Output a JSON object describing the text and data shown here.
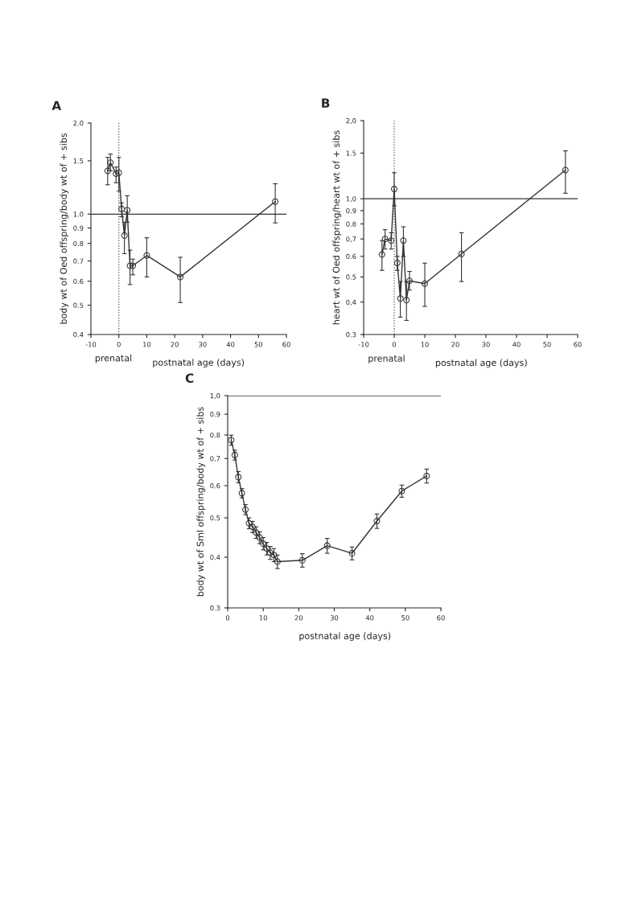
{
  "chart_data": [
    {
      "type": "line",
      "title": "A",
      "xlabel": "postnatal age (days)",
      "ylabel": "body wt of Oed offspring/body wt of + sibs",
      "annotations": [
        "prenatal"
      ],
      "log": "y",
      "grid": false,
      "marker": "circle",
      "line_style": "solid",
      "xlim": [
        -10,
        60
      ],
      "xticks": [
        -10,
        0,
        10,
        20,
        30,
        40,
        50,
        60
      ],
      "ylim": [
        0.4,
        2.0
      ],
      "yticks": [
        {
          "value": 0.4,
          "label": "0.4"
        },
        {
          "value": 0.5,
          "label": "0.5"
        },
        {
          "value": 0.6,
          "label": "0.6"
        },
        {
          "value": 0.7,
          "label": "0.7"
        },
        {
          "value": 0.8,
          "label": "0.8"
        },
        {
          "value": 0.9,
          "label": "0.9"
        },
        {
          "value": 1.0,
          "label": "1.0"
        },
        {
          "value": 1.5,
          "label": "1.5"
        },
        {
          "value": 2.0,
          "label": "2.0"
        }
      ],
      "ref_lines": [
        {
          "axis": "y",
          "value": 1.0,
          "color": "#333333",
          "line_style": "solid"
        },
        {
          "axis": "x",
          "value": 0,
          "color": "#555555",
          "line_style": "dotted"
        }
      ],
      "x": [
        -4,
        -3,
        -1,
        0,
        1,
        2,
        3,
        4,
        5,
        10,
        22,
        56
      ],
      "series": [
        {
          "color": "#333333",
          "values": [
            1.39,
            1.48,
            1.36,
            1.37,
            1.04,
            0.85,
            1.03,
            0.675,
            0.675,
            0.73,
            0.62,
            1.1
          ],
          "errors": [
            [
              1.25,
              1.54
            ],
            [
              1.39,
              1.58
            ],
            [
              1.27,
              1.43
            ],
            [
              1.19,
              1.54
            ],
            [
              0.98,
              1.09
            ],
            [
              0.74,
              0.94
            ],
            [
              0.94,
              1.15
            ],
            [
              0.585,
              0.76
            ],
            [
              0.63,
              0.71
            ],
            [
              0.62,
              0.835
            ],
            [
              0.51,
              0.72
            ],
            [
              0.935,
              1.26
            ]
          ]
        }
      ]
    },
    {
      "type": "line",
      "title": "B",
      "xlabel": "postnatal age (days)",
      "ylabel": "heart wt of Oed offspring/heart wt of + sibs",
      "annotations": [
        "prenatal"
      ],
      "log": "y",
      "grid": false,
      "marker": "circle",
      "line_style": "solid",
      "xlim": [
        -10,
        60
      ],
      "xticks": [
        -10,
        0,
        10,
        20,
        30,
        40,
        50,
        60
      ],
      "ylim": [
        0.3,
        2.0
      ],
      "yticks": [
        {
          "value": 0.3,
          "label": "0.3"
        },
        {
          "value": 0.4,
          "label": "0,4"
        },
        {
          "value": 0.5,
          "label": "0.5"
        },
        {
          "value": 0.6,
          "label": "0.6"
        },
        {
          "value": 0.7,
          "label": "0,7"
        },
        {
          "value": 0.8,
          "label": "0.8"
        },
        {
          "value": 0.9,
          "label": "0.9"
        },
        {
          "value": 1.0,
          "label": "1,0"
        },
        {
          "value": 1.5,
          "label": "1.5"
        },
        {
          "value": 2.0,
          "label": "2,0"
        }
      ],
      "ref_lines": [
        {
          "axis": "y",
          "value": 1.0,
          "color": "#333333",
          "line_style": "solid"
        },
        {
          "axis": "x",
          "value": 0,
          "color": "#555555",
          "line_style": "dotted"
        }
      ],
      "x": [
        -4,
        -3,
        -1,
        0,
        1,
        2,
        3,
        4,
        5,
        10,
        22,
        56
      ],
      "series": [
        {
          "color": "#333333",
          "values": [
            0.61,
            0.7,
            0.69,
            1.09,
            0.566,
            0.413,
            0.69,
            0.407,
            0.483,
            0.471,
            0.613,
            1.29
          ],
          "errors": [
            [
              0.53,
              0.69
            ],
            [
              0.64,
              0.76
            ],
            [
              0.64,
              0.74
            ],
            [
              0.94,
              1.26
            ],
            [
              0.53,
              0.6
            ],
            [
              0.35,
              0.48
            ],
            [
              0.6,
              0.78
            ],
            [
              0.34,
              0.48
            ],
            [
              0.445,
              0.525
            ],
            [
              0.385,
              0.565
            ],
            [
              0.48,
              0.74
            ],
            [
              1.05,
              1.53
            ]
          ]
        }
      ]
    },
    {
      "type": "line",
      "title": "C",
      "xlabel": "postnatal age (days)",
      "ylabel": "body wt of Sml offspring/body wt of + sibs",
      "log": "y",
      "grid": false,
      "marker": "circle",
      "line_style": "solid",
      "xlim": [
        0,
        60
      ],
      "xticks": [
        0,
        10,
        20,
        30,
        40,
        50,
        60
      ],
      "ylim": [
        0.3,
        1.0
      ],
      "yticks": [
        {
          "value": 0.3,
          "label": "0.3"
        },
        {
          "value": 0.4,
          "label": "0.4"
        },
        {
          "value": 0.5,
          "label": "0.5"
        },
        {
          "value": 0.6,
          "label": "0.6"
        },
        {
          "value": 0.7,
          "label": "0.7"
        },
        {
          "value": 0.8,
          "label": "0.8"
        },
        {
          "value": 0.9,
          "label": "0.9"
        },
        {
          "value": 1.0,
          "label": "1,0"
        }
      ],
      "ref_lines": [
        {
          "axis": "y",
          "value": 1.0,
          "color": "#333333",
          "line_style": "solid"
        }
      ],
      "x": [
        1,
        2,
        3,
        4,
        5,
        6,
        7,
        8,
        9,
        10,
        11,
        12,
        13,
        14,
        21,
        28,
        35,
        42,
        49,
        56
      ],
      "series": [
        {
          "color": "#333333",
          "values": [
            0.777,
            0.714,
            0.63,
            0.575,
            0.524,
            0.485,
            0.475,
            0.46,
            0.447,
            0.432,
            0.42,
            0.41,
            0.405,
            0.39,
            0.393,
            0.427,
            0.409,
            0.491,
            0.582,
            0.634
          ],
          "errors": [
            0.022,
            0.02,
            0.02,
            0.015,
            0.015,
            0.015,
            0.015,
            0.015,
            0.015,
            0.015,
            0.015,
            0.015,
            0.015,
            0.015,
            0.015,
            0.018,
            0.015,
            0.02,
            0.02,
            0.025
          ]
        }
      ]
    }
  ]
}
